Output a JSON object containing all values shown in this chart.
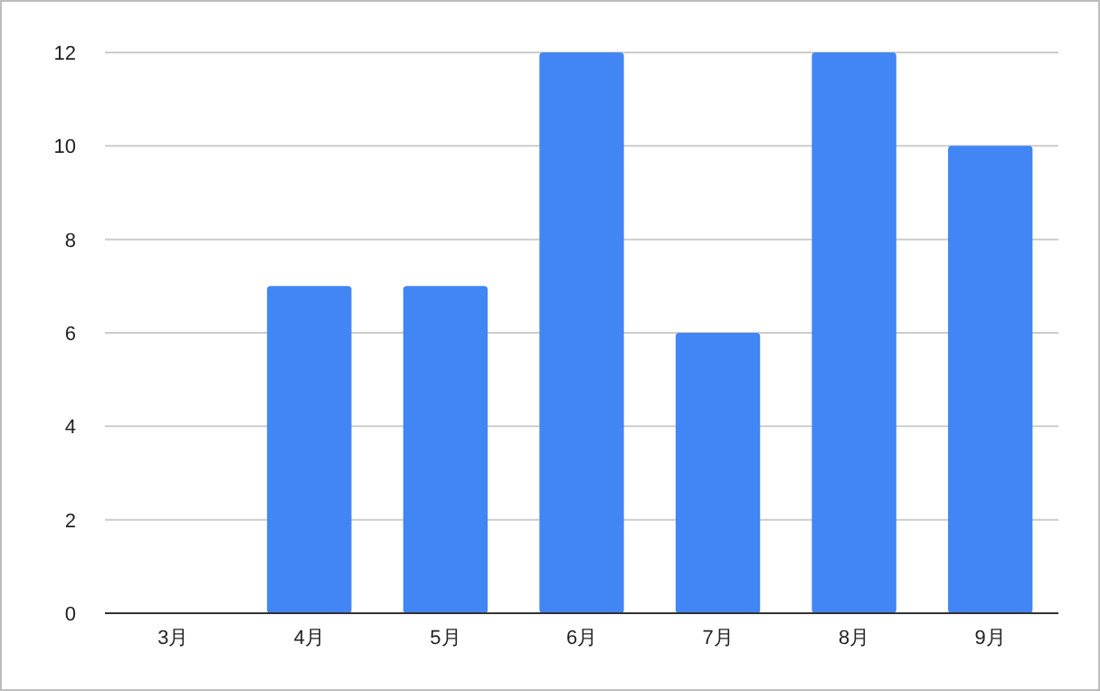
{
  "chart_data": {
    "type": "bar",
    "categories": [
      "3月",
      "4月",
      "5月",
      "6月",
      "7月",
      "8月",
      "9月"
    ],
    "values": [
      0,
      7,
      7,
      12,
      6,
      12,
      10
    ],
    "color": "#4285f4",
    "ylim": [
      0,
      12
    ],
    "yticks": [
      0,
      2,
      4,
      6,
      8,
      10,
      12
    ],
    "grid": "y"
  }
}
